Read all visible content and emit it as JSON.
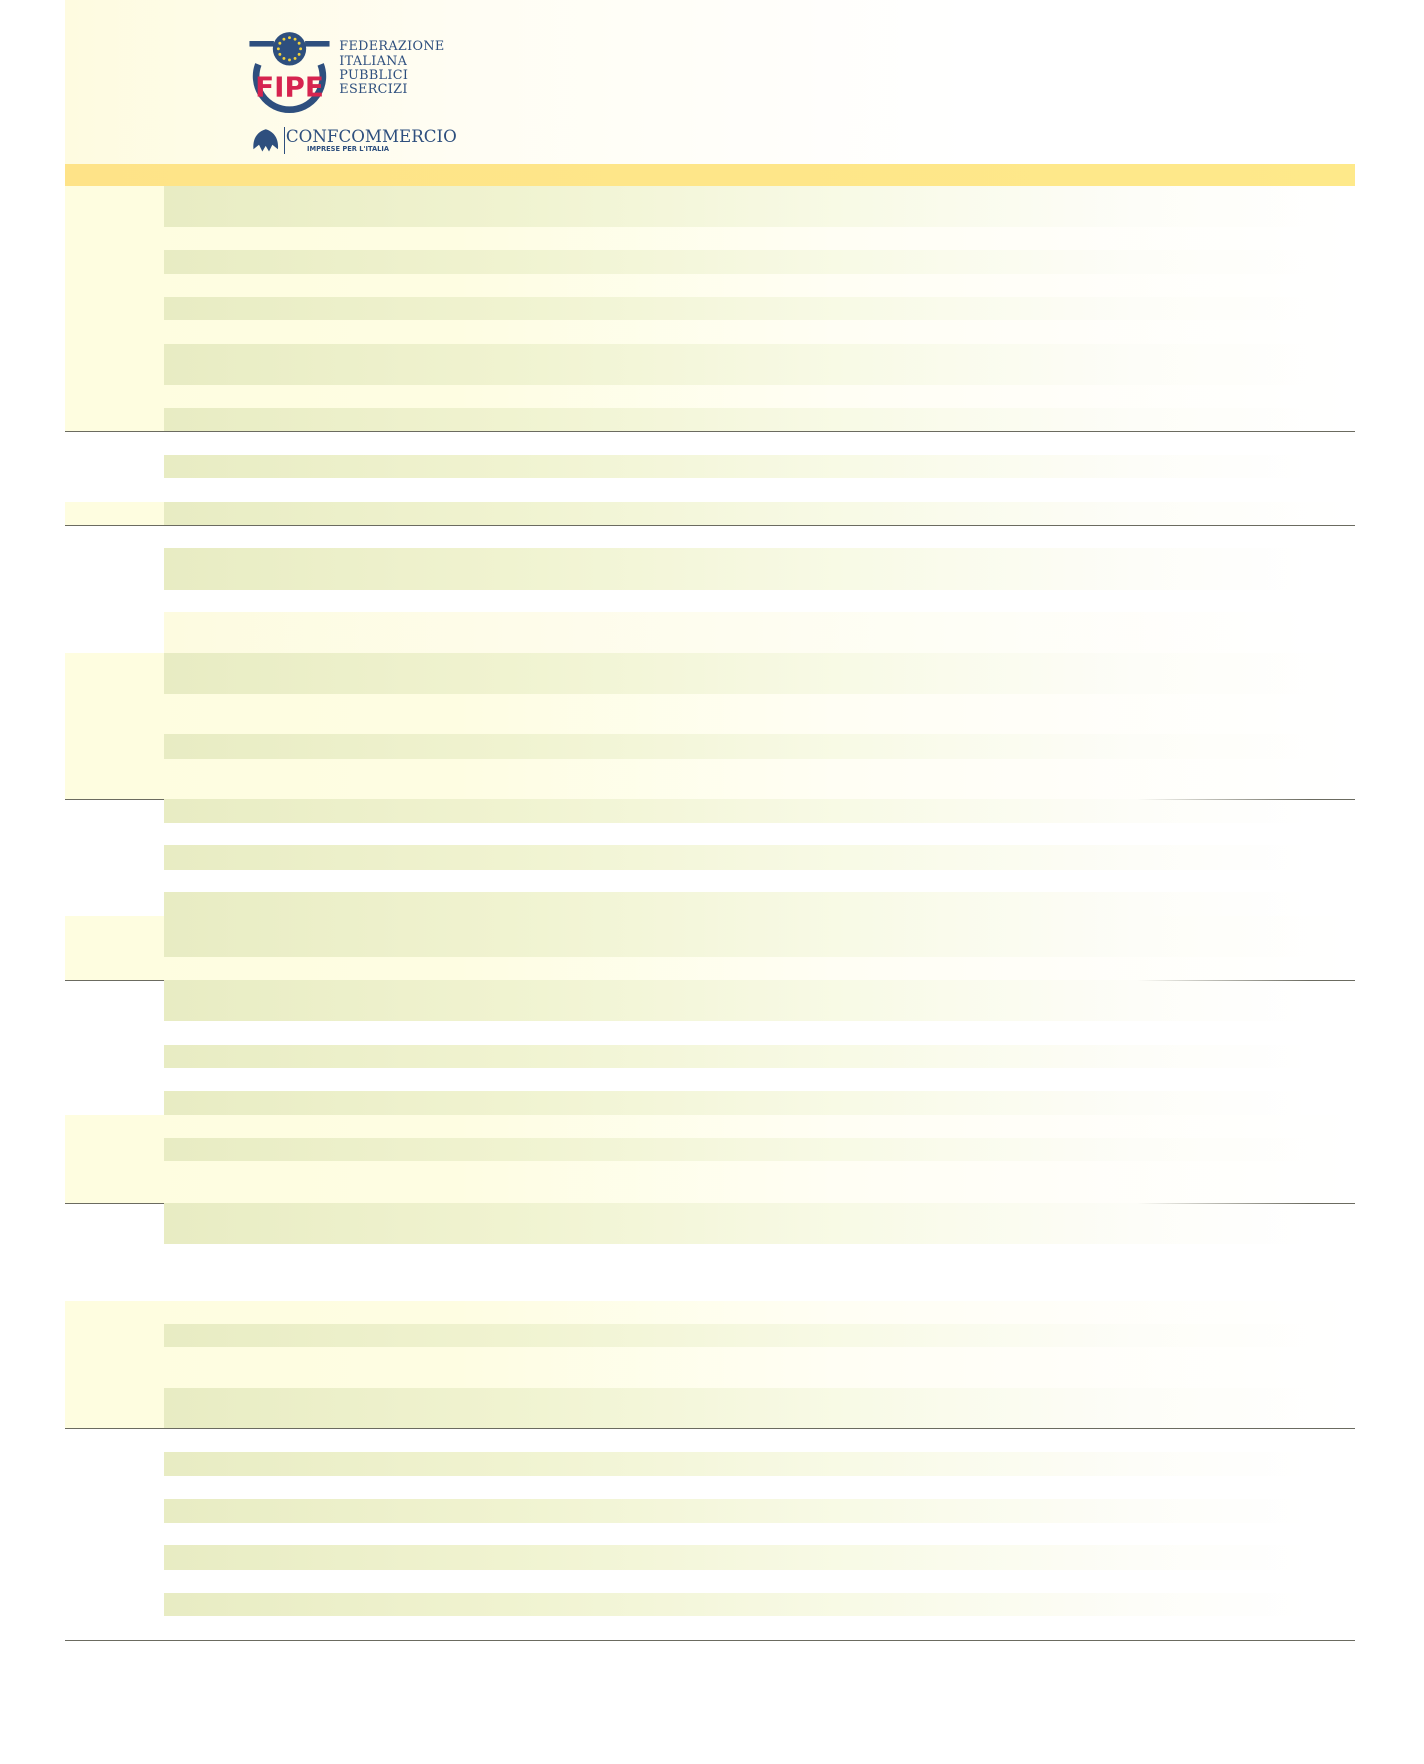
{
  "logo": {
    "fipe_mark": "FIPE",
    "federation_lines": [
      "FEDERAZIONE",
      "ITALIANA",
      "PUBBLICI",
      "ESERCIZI"
    ],
    "confcommercio": "CONFCOMMERCIO",
    "confcommercio_tagline": "IMPRESE PER L'ITALIA",
    "colors": {
      "blue": "#2e4f7e",
      "red": "#d6244f",
      "star": "#f2d23a"
    }
  },
  "table": {
    "header_band_color": "#fee388",
    "rows": []
  }
}
